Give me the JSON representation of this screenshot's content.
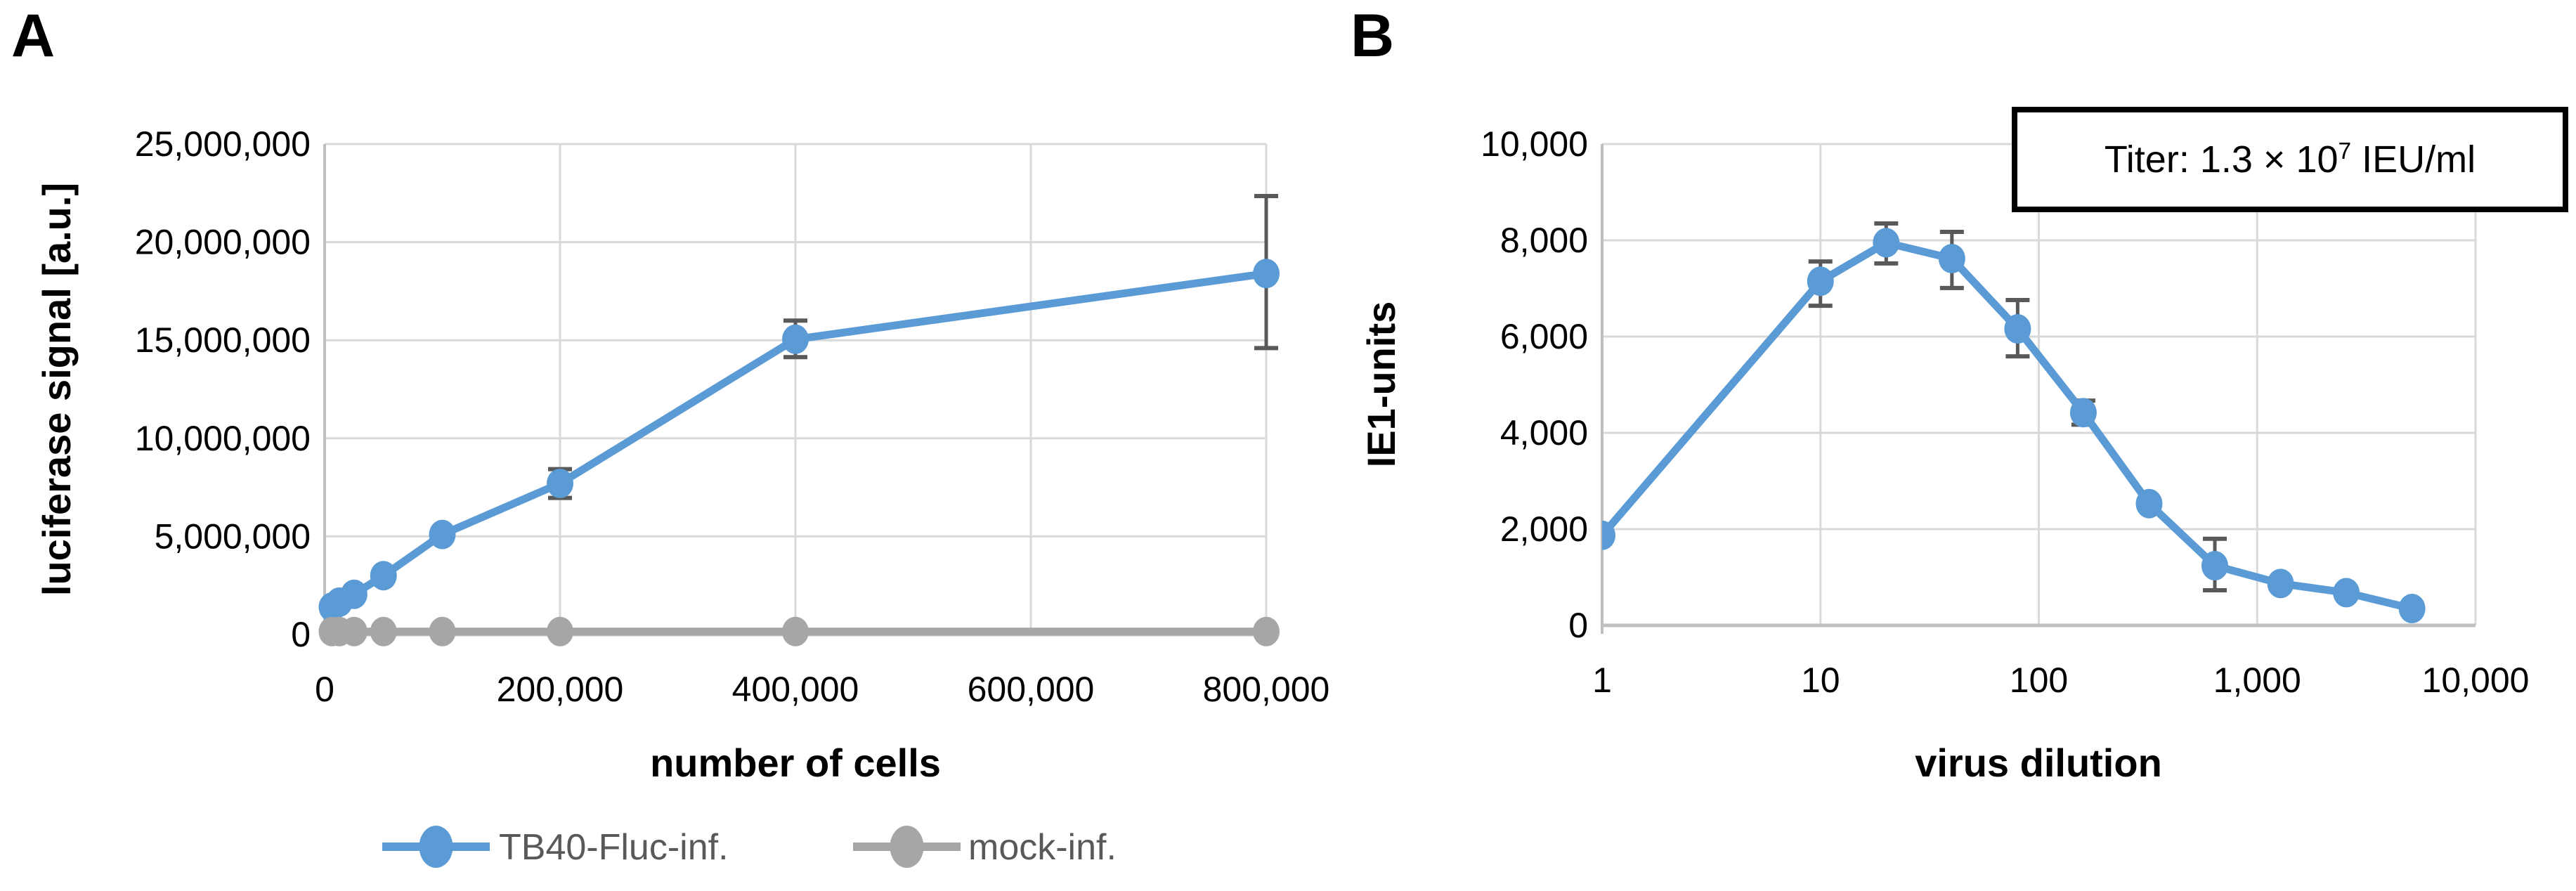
{
  "panels": [
    {
      "label": "A"
    },
    {
      "label": "B"
    }
  ],
  "colors": {
    "series_blue": "#5B9BD5",
    "series_gray": "#A6A6A6",
    "error_bar": "#595959",
    "gridline": "#D9D9D9",
    "axis_line": "#BFBFBF",
    "tick_text": "#000000",
    "legend_text": "#595959"
  },
  "chart_data": [
    {
      "id": "A",
      "type": "line",
      "title": "",
      "xlabel": "number of cells",
      "ylabel": "luciferase signal [a.u.]",
      "x_scale": "linear",
      "xlim": [
        0,
        800000
      ],
      "ylim": [
        0,
        25000000
      ],
      "grid": true,
      "legend_position": "bottom",
      "x_ticks": [
        {
          "v": 0,
          "label": "0"
        },
        {
          "v": 200000,
          "label": "200,000"
        },
        {
          "v": 400000,
          "label": "400,000"
        },
        {
          "v": 600000,
          "label": "600,000"
        },
        {
          "v": 800000,
          "label": "800,000"
        }
      ],
      "y_ticks": [
        {
          "v": 0,
          "label": "0"
        },
        {
          "v": 5000000,
          "label": "5,000,000"
        },
        {
          "v": 10000000,
          "label": "10,000,000"
        },
        {
          "v": 15000000,
          "label": "15,000,000"
        },
        {
          "v": 20000000,
          "label": "20,000,000"
        },
        {
          "v": 25000000,
          "label": "25,000,000"
        }
      ],
      "series": [
        {
          "name": "TB40-Fluc-inf.",
          "color": "#5B9BD5",
          "points": [
            {
              "x": 6250,
              "y": 1400000
            },
            {
              "x": 12500,
              "y": 1650000
            },
            {
              "x": 25000,
              "y": 2050000
            },
            {
              "x": 50000,
              "y": 3000000
            },
            {
              "x": 100000,
              "y": 5100000
            },
            {
              "x": 200000,
              "y": 7700000,
              "err_low": 6960000,
              "err_high": 8430000
            },
            {
              "x": 400000,
              "y": 15050000,
              "err_low": 14140000,
              "err_high": 16000000
            },
            {
              "x": 800000,
              "y": 18400000,
              "err_low": 14600000,
              "err_high": 22350000
            }
          ]
        },
        {
          "name": "mock-inf.",
          "color": "#A6A6A6",
          "points": [
            {
              "x": 6250,
              "y": 150000
            },
            {
              "x": 12500,
              "y": 150000
            },
            {
              "x": 25000,
              "y": 150000
            },
            {
              "x": 50000,
              "y": 150000
            },
            {
              "x": 100000,
              "y": 150000
            },
            {
              "x": 200000,
              "y": 150000
            },
            {
              "x": 400000,
              "y": 150000
            },
            {
              "x": 800000,
              "y": 150000
            }
          ]
        }
      ]
    },
    {
      "id": "B",
      "type": "line",
      "title": "",
      "xlabel": "virus dilution",
      "ylabel": "IE1-units",
      "x_scale": "log",
      "xlim": [
        1,
        10000
      ],
      "ylim": [
        0,
        10000
      ],
      "grid": true,
      "legend_position": "none",
      "annotation": {
        "prefix": "Titer: 1.3 × 10",
        "sup": "7",
        "suffix": " IEU/ml"
      },
      "x_ticks": [
        {
          "v": 1,
          "label": "1"
        },
        {
          "v": 10,
          "label": "10"
        },
        {
          "v": 100,
          "label": "100"
        },
        {
          "v": 1000,
          "label": "1,000"
        },
        {
          "v": 10000,
          "label": "10,000"
        }
      ],
      "y_ticks": [
        {
          "v": 0,
          "label": "0"
        },
        {
          "v": 2000,
          "label": "2,000"
        },
        {
          "v": 4000,
          "label": "4,000"
        },
        {
          "v": 6000,
          "label": "6,000"
        },
        {
          "v": 8000,
          "label": "8,000"
        },
        {
          "v": 10000,
          "label": "10,000"
        }
      ],
      "series": [
        {
          "name": "IE1-units",
          "color": "#5B9BD5",
          "points": [
            {
              "x": 1,
              "y": 1870
            },
            {
              "x": 10,
              "y": 7150,
              "err_low": 6640,
              "err_high": 7560
            },
            {
              "x": 20,
              "y": 7950,
              "err_low": 7520,
              "err_high": 8350
            },
            {
              "x": 40,
              "y": 7620,
              "err_low": 7010,
              "err_high": 8175
            },
            {
              "x": 80,
              "y": 6160,
              "err_low": 5590,
              "err_high": 6760
            },
            {
              "x": 160,
              "y": 4420,
              "err_low": 4170,
              "err_high": 4670
            },
            {
              "x": 320,
              "y": 2530
            },
            {
              "x": 640,
              "y": 1240,
              "err_low": 730,
              "err_high": 1800
            },
            {
              "x": 1280,
              "y": 870
            },
            {
              "x": 2560,
              "y": 680
            },
            {
              "x": 5120,
              "y": 350
            }
          ]
        }
      ]
    }
  ]
}
